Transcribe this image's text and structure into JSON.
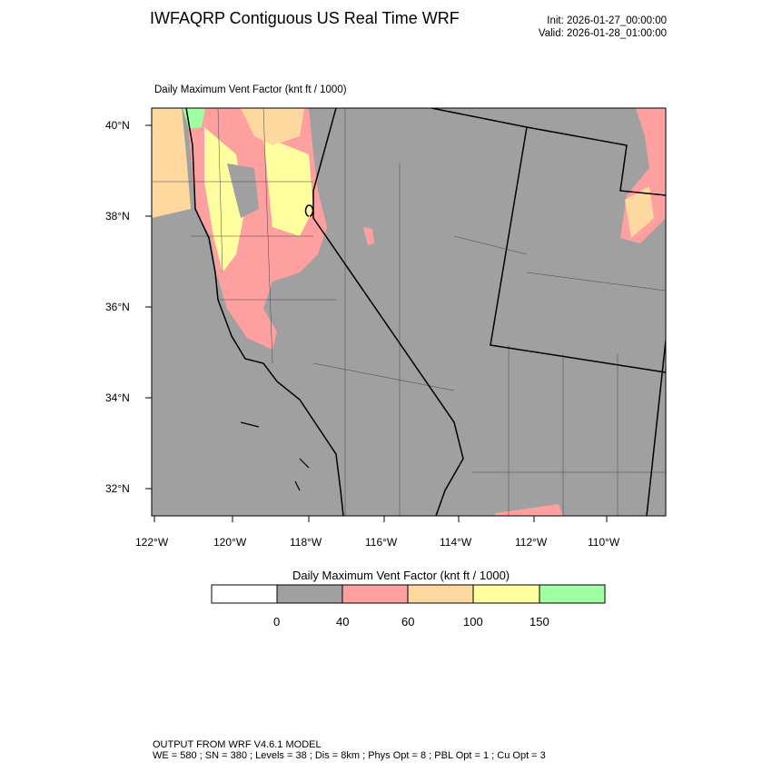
{
  "header": {
    "title": "IWFAQRP Contiguous US Real Time WRF",
    "init": "Init: 2026-01-27_00:00:00",
    "valid": "Valid: 2026-01-28_01:00:00"
  },
  "map": {
    "subtitle": "Daily Maximum Vent Factor   (knt ft / 1000)",
    "lat_labels": [
      "40°N",
      "38°N",
      "36°N",
      "34°N",
      "32°N"
    ],
    "lon_labels": [
      "122°W",
      "120°W",
      "118°W",
      "116°W",
      "114°W",
      "112°W",
      "110°W"
    ],
    "colors": {
      "background": "#a0a0a0",
      "pink": "#ffa0a0",
      "peach": "#ffd8a0",
      "yellow": "#ffffa0",
      "green": "#a0ffa0"
    }
  },
  "colorbar": {
    "title": "Daily Maximum Vent Factor  (knt ft / 1000)",
    "bins": [
      "#ffffff",
      "#a0a0a0",
      "#ffa0a0",
      "#ffd8a0",
      "#ffffa0",
      "#a0ffa0"
    ],
    "labels": [
      "0",
      "40",
      "60",
      "100",
      "150"
    ]
  },
  "footer": {
    "line1": "OUTPUT FROM WRF V4.6.1 MODEL",
    "line2": "WE = 580 ; SN = 380 ; Levels = 38 ; Dis = 8km ; Phys Opt = 8 ; PBL Opt = 1 ; Cu Opt = 3"
  }
}
